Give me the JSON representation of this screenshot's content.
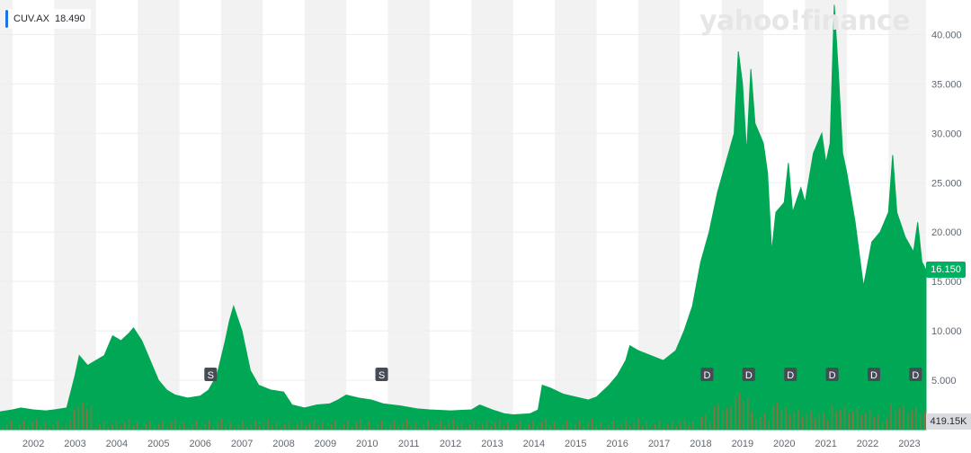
{
  "brand": "yahoo!finance",
  "legend": {
    "symbol": "CUV.AX",
    "value": "18.490",
    "color": "#1a73e8"
  },
  "price_tag": {
    "value": "16.150",
    "color": "#00b061"
  },
  "volume_tag": {
    "value": "419.15K"
  },
  "colors": {
    "area": "#00a754",
    "volume": "#b0663f",
    "band": "#f2f2f2",
    "grid": "#ededed"
  },
  "chart_data": {
    "type": "area",
    "title": "",
    "xlabel": "",
    "ylabel": "",
    "x_range": [
      2001.7,
      2023.9
    ],
    "ylim": [
      0,
      43.5
    ],
    "y_ticks": [
      "5.000",
      "10.000",
      "15.000",
      "20.000",
      "25.000",
      "30.000",
      "35.000",
      "40.000"
    ],
    "x_ticks": [
      "2002",
      "2003",
      "2004",
      "2005",
      "2006",
      "2007",
      "2008",
      "2009",
      "2010",
      "2011",
      "2012",
      "2013",
      "2014",
      "2015",
      "2016",
      "2017",
      "2018",
      "2019",
      "2020",
      "2021",
      "2022",
      "2023"
    ],
    "grid": true,
    "series": [
      {
        "values": [
          [
            2001.7,
            1.8
          ],
          [
            2002.0,
            2.0
          ],
          [
            2002.2,
            2.2
          ],
          [
            2002.5,
            2.0
          ],
          [
            2002.8,
            1.9
          ],
          [
            2003.0,
            2.0
          ],
          [
            2003.3,
            2.2
          ],
          [
            2003.5,
            5.5
          ],
          [
            2003.6,
            7.5
          ],
          [
            2003.8,
            6.5
          ],
          [
            2004.0,
            7.0
          ],
          [
            2004.2,
            7.5
          ],
          [
            2004.4,
            9.5
          ],
          [
            2004.6,
            9.0
          ],
          [
            2004.8,
            9.8
          ],
          [
            2004.9,
            10.3
          ],
          [
            2005.1,
            9.0
          ],
          [
            2005.3,
            7.0
          ],
          [
            2005.5,
            5.0
          ],
          [
            2005.7,
            4.0
          ],
          [
            2005.9,
            3.5
          ],
          [
            2006.2,
            3.2
          ],
          [
            2006.5,
            3.4
          ],
          [
            2006.7,
            4.0
          ],
          [
            2006.9,
            5.5
          ],
          [
            2007.1,
            9.0
          ],
          [
            2007.2,
            11.0
          ],
          [
            2007.3,
            12.5
          ],
          [
            2007.5,
            10.0
          ],
          [
            2007.7,
            6.0
          ],
          [
            2007.9,
            4.5
          ],
          [
            2008.2,
            4.0
          ],
          [
            2008.5,
            3.8
          ],
          [
            2008.7,
            2.5
          ],
          [
            2009.0,
            2.2
          ],
          [
            2009.3,
            2.5
          ],
          [
            2009.6,
            2.6
          ],
          [
            2009.8,
            3.0
          ],
          [
            2010.0,
            3.5
          ],
          [
            2010.3,
            3.2
          ],
          [
            2010.6,
            3.0
          ],
          [
            2010.9,
            2.6
          ],
          [
            2011.3,
            2.4
          ],
          [
            2011.7,
            2.1
          ],
          [
            2012.0,
            2.0
          ],
          [
            2012.5,
            1.9
          ],
          [
            2013.0,
            2.0
          ],
          [
            2013.2,
            2.5
          ],
          [
            2013.5,
            2.0
          ],
          [
            2013.8,
            1.6
          ],
          [
            2014.0,
            1.5
          ],
          [
            2014.4,
            1.6
          ],
          [
            2014.6,
            2.0
          ],
          [
            2014.7,
            4.5
          ],
          [
            2014.9,
            4.2
          ],
          [
            2015.2,
            3.6
          ],
          [
            2015.5,
            3.3
          ],
          [
            2015.8,
            3.0
          ],
          [
            2016.0,
            3.3
          ],
          [
            2016.3,
            4.5
          ],
          [
            2016.5,
            5.5
          ],
          [
            2016.7,
            7.0
          ],
          [
            2016.8,
            8.5
          ],
          [
            2017.0,
            8.0
          ],
          [
            2017.3,
            7.5
          ],
          [
            2017.6,
            7.0
          ],
          [
            2017.9,
            8.0
          ],
          [
            2018.1,
            10.0
          ],
          [
            2018.3,
            12.5
          ],
          [
            2018.5,
            17.0
          ],
          [
            2018.7,
            20.0
          ],
          [
            2018.9,
            24.0
          ],
          [
            2019.1,
            27.0
          ],
          [
            2019.3,
            30.0
          ],
          [
            2019.4,
            38.3
          ],
          [
            2019.5,
            35.0
          ],
          [
            2019.6,
            28.0
          ],
          [
            2019.7,
            36.5
          ],
          [
            2019.8,
            31.0
          ],
          [
            2019.9,
            30.0
          ],
          [
            2020.0,
            29.0
          ],
          [
            2020.1,
            26.0
          ],
          [
            2020.2,
            18.0
          ],
          [
            2020.3,
            22.0
          ],
          [
            2020.5,
            23.0
          ],
          [
            2020.6,
            27.0
          ],
          [
            2020.7,
            22.0
          ],
          [
            2020.9,
            24.5
          ],
          [
            2021.0,
            23.0
          ],
          [
            2021.2,
            28.0
          ],
          [
            2021.4,
            30.0
          ],
          [
            2021.5,
            27.0
          ],
          [
            2021.6,
            29.0
          ],
          [
            2021.7,
            43.0
          ],
          [
            2021.8,
            36.0
          ],
          [
            2021.9,
            28.0
          ],
          [
            2022.0,
            26.0
          ],
          [
            2022.2,
            21.0
          ],
          [
            2022.4,
            14.5
          ],
          [
            2022.6,
            19.0
          ],
          [
            2022.8,
            20.0
          ],
          [
            2023.0,
            22.0
          ],
          [
            2023.1,
            27.8
          ],
          [
            2023.2,
            22.0
          ],
          [
            2023.4,
            19.5
          ],
          [
            2023.6,
            18.0
          ],
          [
            2023.7,
            21.0
          ],
          [
            2023.8,
            17.0
          ],
          [
            2023.9,
            16.15
          ]
        ]
      }
    ],
    "events": [
      {
        "label": "S",
        "x": 2006.75
      },
      {
        "label": "S",
        "x": 2010.85
      },
      {
        "label": "D",
        "x": 2018.65
      },
      {
        "label": "D",
        "x": 2019.65
      },
      {
        "label": "D",
        "x": 2020.65
      },
      {
        "label": "D",
        "x": 2021.65
      },
      {
        "label": "D",
        "x": 2022.65
      },
      {
        "label": "D",
        "x": 2023.65
      }
    ]
  }
}
